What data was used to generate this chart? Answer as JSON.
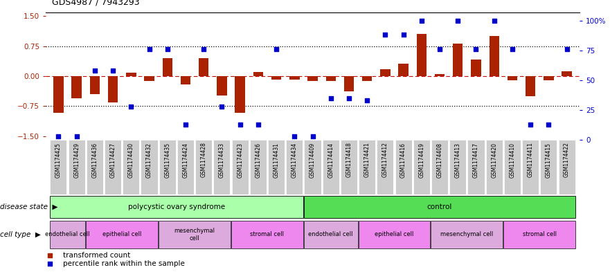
{
  "title": "GDS4987 / 7943293",
  "samples": [
    "GSM1174425",
    "GSM1174429",
    "GSM1174436",
    "GSM1174427",
    "GSM1174430",
    "GSM1174432",
    "GSM1174435",
    "GSM1174424",
    "GSM1174428",
    "GSM1174433",
    "GSM1174423",
    "GSM1174426",
    "GSM1174431",
    "GSM1174434",
    "GSM1174409",
    "GSM1174414",
    "GSM1174418",
    "GSM1174421",
    "GSM1174412",
    "GSM1174416",
    "GSM1174419",
    "GSM1174408",
    "GSM1174413",
    "GSM1174417",
    "GSM1174420",
    "GSM1174410",
    "GSM1174411",
    "GSM1174415",
    "GSM1174422"
  ],
  "bar_values": [
    -0.92,
    -0.55,
    -0.45,
    -0.65,
    0.08,
    -0.12,
    0.45,
    -0.2,
    0.45,
    -0.48,
    -0.92,
    0.1,
    -0.08,
    -0.08,
    -0.12,
    -0.12,
    -0.38,
    -0.12,
    0.18,
    0.32,
    1.05,
    0.06,
    0.82,
    0.42,
    1.0,
    -0.1,
    -0.5,
    -0.1,
    0.12
  ],
  "dot_values": [
    3,
    3,
    58,
    58,
    28,
    76,
    76,
    13,
    76,
    28,
    13,
    13,
    76,
    3,
    3,
    35,
    35,
    33,
    88,
    88,
    100,
    76,
    100,
    76,
    100,
    76,
    13,
    13,
    76
  ],
  "ylim_left": [
    -1.6,
    1.6
  ],
  "ylim_right": [
    0,
    107
  ],
  "yticks_left": [
    -1.5,
    -0.75,
    0.0,
    0.75,
    1.5
  ],
  "yticks_right": [
    0,
    25,
    50,
    75,
    100
  ],
  "ytick_labels_right": [
    "0",
    "25",
    "50",
    "75",
    "100%"
  ],
  "bar_color": "#aa2200",
  "dot_color": "#0000cc",
  "bar_width": 0.55,
  "disease_groups": [
    {
      "label": "polycystic ovary syndrome",
      "start": 0,
      "end": 13,
      "color": "#aaffaa"
    },
    {
      "label": "control",
      "start": 14,
      "end": 28,
      "color": "#55dd55"
    }
  ],
  "cell_groups": [
    {
      "label": "endothelial cell",
      "start": 0,
      "end": 1,
      "color": "#ddaadd"
    },
    {
      "label": "epithelial cell",
      "start": 2,
      "end": 5,
      "color": "#ee88ee"
    },
    {
      "label": "mesenchymal\ncell",
      "start": 6,
      "end": 9,
      "color": "#ddaadd"
    },
    {
      "label": "stromal cell",
      "start": 10,
      "end": 13,
      "color": "#ee88ee"
    },
    {
      "label": "endothelial cell",
      "start": 14,
      "end": 16,
      "color": "#ddaadd"
    },
    {
      "label": "epithelial cell",
      "start": 17,
      "end": 20,
      "color": "#ee88ee"
    },
    {
      "label": "mesenchymal cell",
      "start": 21,
      "end": 24,
      "color": "#ddaadd"
    },
    {
      "label": "stromal cell",
      "start": 25,
      "end": 28,
      "color": "#ee88ee"
    }
  ],
  "legend_items": [
    {
      "label": "transformed count",
      "color": "#aa2200"
    },
    {
      "label": "percentile rank within the sample",
      "color": "#0000cc"
    }
  ],
  "disease_state_label": "disease state",
  "cell_type_label": "cell type",
  "sample_box_color": "#cccccc",
  "title_fontsize": 9,
  "tick_fontsize": 5.5,
  "axis_tick_fontsize": 7.5,
  "label_fontsize": 7.5,
  "cell_label_fontsize": 6,
  "legend_fontsize": 7.5
}
